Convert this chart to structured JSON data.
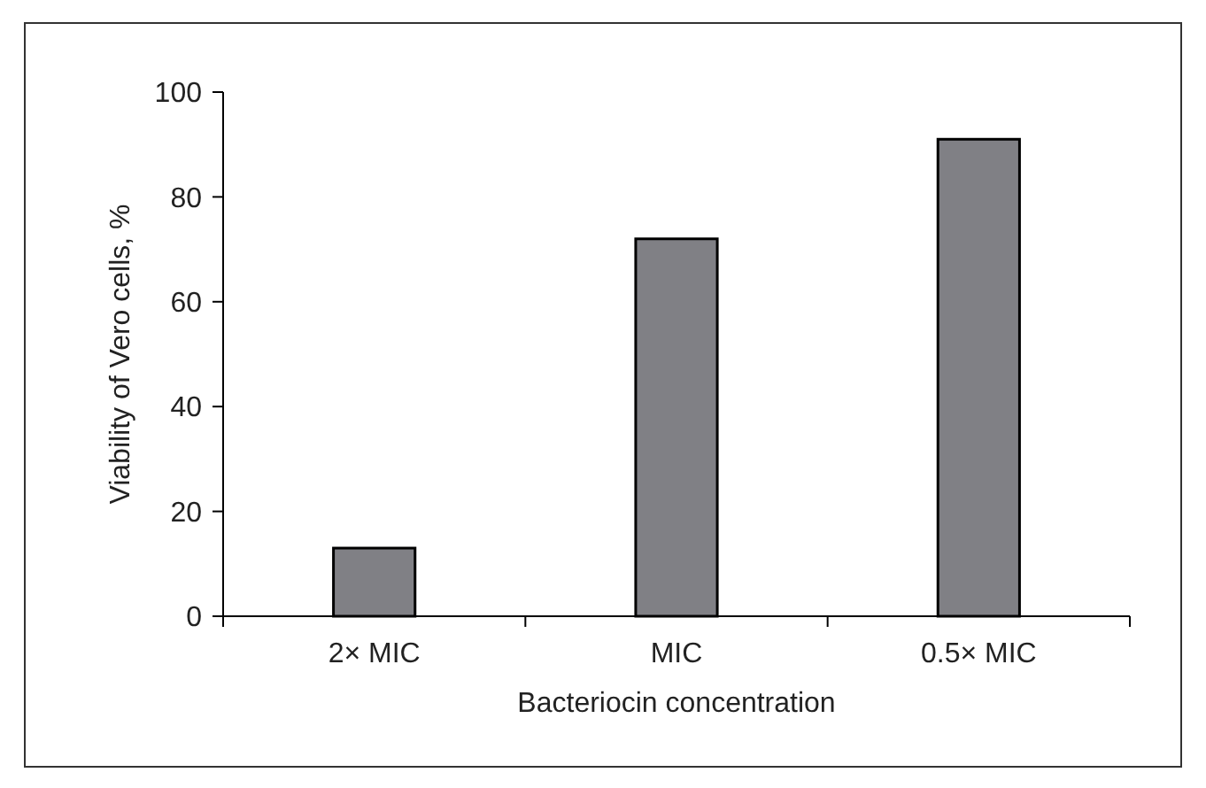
{
  "chart_data": {
    "type": "bar",
    "xlabel": "Bacteriocin concentration",
    "ylabel": "Viability of Vero cells, %",
    "categories": [
      "2× MIC",
      "MIC",
      "0.5× MIC"
    ],
    "values": [
      13,
      72,
      91
    ],
    "color": "#808085",
    "ylim": [
      0,
      100
    ],
    "yticks": [
      0,
      20,
      40,
      60,
      80,
      100
    ],
    "grid": false
  }
}
